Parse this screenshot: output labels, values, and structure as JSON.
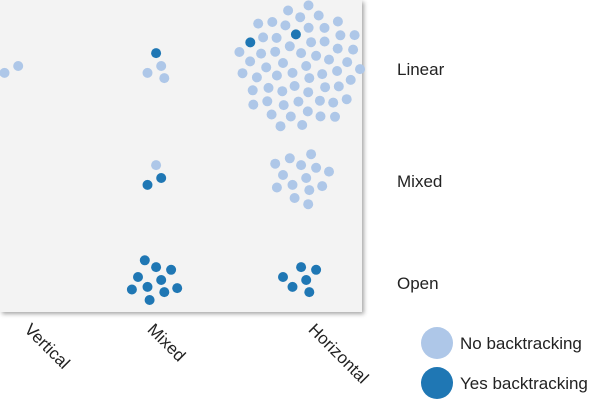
{
  "chart_data": {
    "type": "scatter",
    "title": "",
    "xlabel": "",
    "ylabel": "",
    "categories_x": [
      "Vertical",
      "Mixed",
      "Horizontal"
    ],
    "categories_y": [
      "Linear",
      "Mixed",
      "Open"
    ],
    "legend": {
      "placement": "bottom-right",
      "entries": [
        {
          "name": "No backtracking",
          "color": "#aec7e8"
        },
        {
          "name": "Yes backtracking",
          "color": "#1f77b4"
        }
      ]
    },
    "series": [
      {
        "name": "No backtracking",
        "color": "#aec7e8",
        "points": [
          {
            "x": "Vertical",
            "y": "Linear",
            "count": 2
          },
          {
            "x": "Mixed",
            "y": "Linear",
            "count": 3
          },
          {
            "x": "Horizontal",
            "y": "Linear",
            "count": 60
          },
          {
            "x": "Mixed",
            "y": "Mixed",
            "count": 1
          },
          {
            "x": "Horizontal",
            "y": "Mixed",
            "count": 14
          }
        ]
      },
      {
        "name": "Yes backtracking",
        "color": "#1f77b4",
        "points": [
          {
            "x": "Mixed",
            "y": "Linear",
            "count": 1
          },
          {
            "x": "Horizontal",
            "y": "Linear",
            "count": 2
          },
          {
            "x": "Mixed",
            "y": "Mixed",
            "count": 2
          },
          {
            "x": "Mixed",
            "y": "Open",
            "count": 10
          },
          {
            "x": "Horizontal",
            "y": "Open",
            "count": 6
          }
        ]
      }
    ]
  }
}
